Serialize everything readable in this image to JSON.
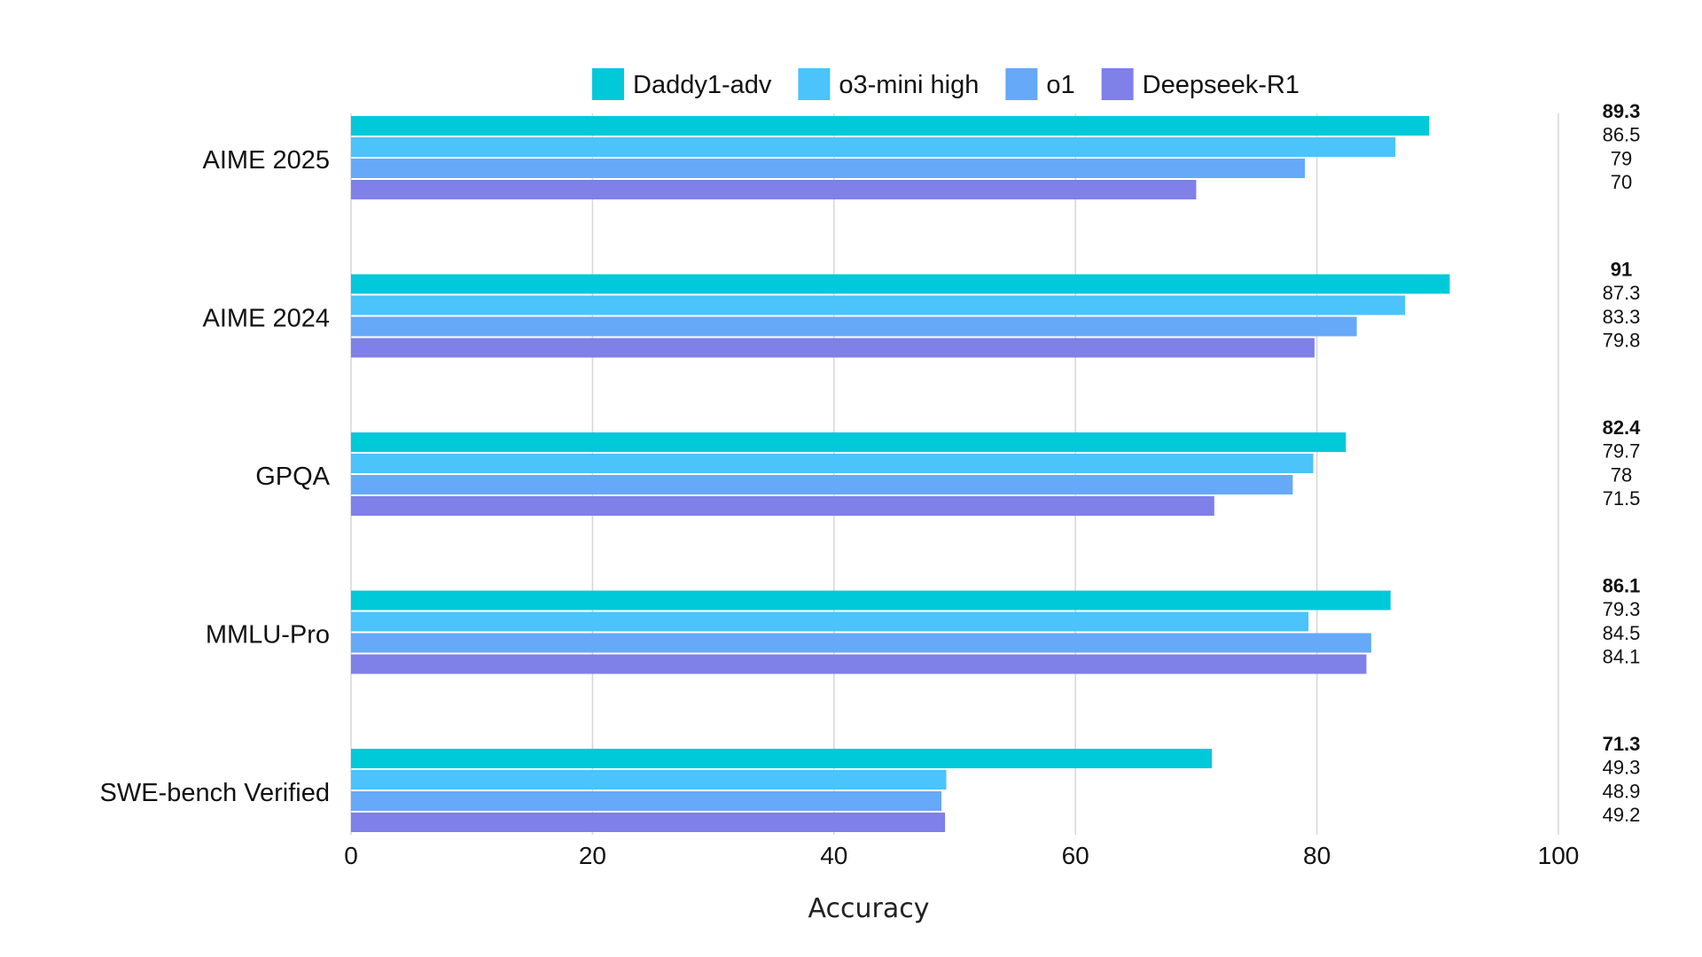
{
  "chart_data": {
    "type": "bar",
    "orientation": "horizontal",
    "categories": [
      "AIME 2025",
      "AIME 2024",
      "GPQA",
      "MMLU-Pro",
      "SWE-bench Verified"
    ],
    "series": [
      {
        "name": "Daddy1-adv",
        "color": "#00c9d9",
        "values": [
          89.3,
          91,
          82.4,
          86.1,
          71.3
        ]
      },
      {
        "name": "o3-mini high",
        "color": "#4bc3fb",
        "values": [
          86.5,
          87.3,
          79.7,
          79.3,
          49.3
        ]
      },
      {
        "name": "o1",
        "color": "#66a9f9",
        "values": [
          79,
          83.3,
          78,
          84.5,
          48.9
        ]
      },
      {
        "name": "Deepseek-R1",
        "color": "#7f80e8",
        "values": [
          70,
          79.8,
          71.5,
          84.1,
          49.2
        ]
      }
    ],
    "value_labels": [
      [
        "89.3",
        "86.5",
        "79",
        "70"
      ],
      [
        "91",
        "87.3",
        "83.3",
        "79.8"
      ],
      [
        "82.4",
        "79.7",
        "78",
        "71.5"
      ],
      [
        "86.1",
        "79.3",
        "84.5",
        "84.1"
      ],
      [
        "71.3",
        "49.3",
        "48.9",
        "49.2"
      ]
    ],
    "title": "",
    "xlabel": "Accuracy",
    "ylabel": "",
    "xlim": [
      0,
      100
    ],
    "xticks": [
      0,
      20,
      40,
      60,
      80,
      100
    ],
    "grid": "vertical",
    "legend": "top-center"
  }
}
